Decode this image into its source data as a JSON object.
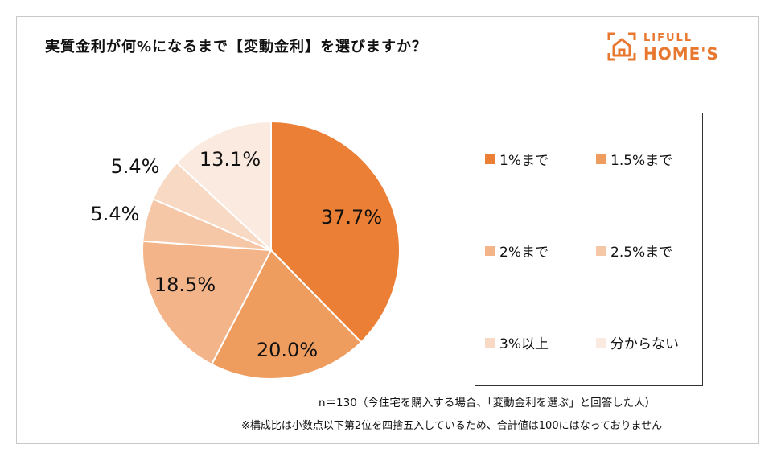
{
  "title": "実質金利が何%になるまで【変動金利】を選びますか？",
  "logo": {
    "top": "LIFULL",
    "bottom": "HOME'S"
  },
  "colors": {
    "brand": "#e8772f",
    "frame": "#c8c8c8"
  },
  "chart_data": {
    "type": "pie",
    "categories": [
      "1%まで",
      "1.5%まで",
      "2%まで",
      "2.5%まで",
      "3%以上",
      "分からない"
    ],
    "values": [
      37.7,
      20.0,
      18.5,
      5.4,
      5.4,
      13.1
    ],
    "labels": [
      "37.7%",
      "20.0%",
      "18.5%",
      "5.4%",
      "5.4%",
      "13.1%"
    ],
    "colors": [
      "#ea7f35",
      "#ef9c5f",
      "#f3b48a",
      "#f6c7a6",
      "#f8d9c4",
      "#fbeadf"
    ],
    "legend_position": "right"
  },
  "notes": {
    "n": "n＝130（今住宅を購入する場合、「変動金利を選ぶ」と回答した人）",
    "rounding": "※構成比は小数点以下第2位を四捨五入しているため、合計値は100にはなっておりません"
  }
}
